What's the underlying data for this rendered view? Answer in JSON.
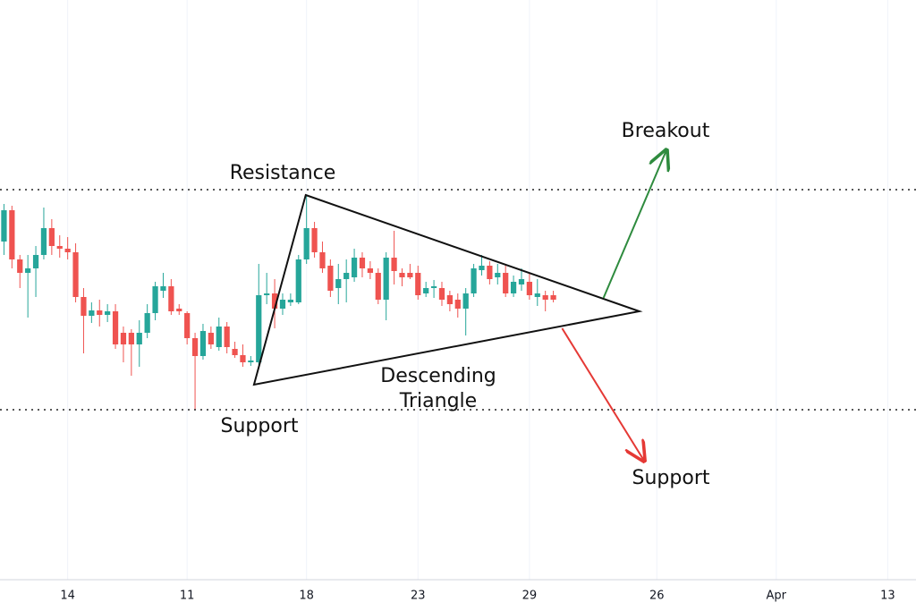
{
  "chart_data": {
    "type": "candlestick",
    "x": [
      0,
      1,
      2,
      3,
      4,
      5,
      6,
      7,
      8,
      9,
      10,
      11,
      12,
      13,
      14,
      15,
      16,
      17,
      18,
      19,
      20,
      21,
      22,
      23,
      24,
      25,
      26,
      27,
      28,
      29,
      30,
      31,
      32,
      33,
      34,
      35,
      36,
      37,
      38,
      39,
      40,
      41,
      42,
      43,
      44,
      45,
      46,
      47,
      48,
      49,
      50,
      51,
      52,
      53,
      54,
      55,
      56,
      57,
      58,
      59,
      60,
      61,
      62,
      63,
      64,
      65,
      66,
      67,
      68,
      69
    ],
    "open": [
      37.8,
      41.3,
      35.8,
      34.3,
      34.8,
      36.3,
      39.3,
      37.3,
      37.0,
      36.6,
      31.6,
      29.5,
      30.1,
      29.6,
      30.0,
      27.6,
      27.6,
      26.3,
      27.6,
      29.8,
      32.3,
      32.8,
      30.3,
      29.8,
      27.0,
      25.0,
      27.6,
      26.0,
      28.3,
      25.8,
      25.1,
      24.3,
      24.3,
      31.8,
      32.0,
      30.3,
      31.0,
      31.0,
      35.8,
      39.3,
      36.6,
      35.1,
      32.6,
      33.6,
      33.8,
      36.0,
      34.8,
      34.3,
      31.3,
      36.0,
      34.3,
      34.3,
      34.3,
      32.0,
      32.6,
      32.6,
      31.8,
      31.3,
      30.3,
      32.0,
      34.6,
      35.1,
      33.8,
      34.3,
      32.0,
      33.0,
      33.3,
      31.6,
      31.8,
      31.8
    ],
    "high": [
      42.0,
      41.8,
      36.3,
      36.3,
      37.3,
      41.6,
      40.3,
      38.5,
      38.3,
      37.6,
      32.6,
      31.0,
      31.3,
      30.8,
      30.8,
      28.3,
      28.0,
      29.0,
      30.8,
      33.3,
      34.3,
      33.6,
      30.8,
      30.0,
      27.6,
      28.6,
      28.3,
      29.3,
      28.8,
      26.6,
      26.3,
      25.0,
      35.3,
      34.3,
      33.6,
      32.0,
      32.0,
      36.3,
      43.0,
      40.0,
      37.8,
      35.8,
      35.3,
      35.8,
      37.0,
      36.6,
      35.6,
      34.8,
      36.6,
      39.0,
      34.8,
      35.3,
      35.1,
      33.3,
      33.5,
      33.3,
      32.3,
      32.0,
      32.6,
      35.3,
      36.3,
      35.6,
      35.3,
      35.3,
      34.0,
      34.8,
      34.3,
      33.6,
      32.3,
      32.3
    ],
    "low": [
      36.3,
      34.8,
      32.6,
      29.3,
      31.6,
      35.8,
      36.3,
      36.0,
      35.8,
      31.0,
      25.3,
      28.7,
      28.3,
      28.8,
      25.8,
      24.3,
      22.8,
      23.8,
      27.0,
      29.0,
      31.5,
      29.6,
      29.6,
      26.3,
      19.0,
      24.6,
      25.8,
      25.6,
      25.3,
      24.8,
      23.8,
      23.9,
      24.0,
      30.8,
      28.1,
      29.6,
      30.6,
      30.8,
      35.3,
      36.0,
      34.3,
      31.6,
      30.8,
      31.0,
      33.3,
      33.8,
      33.6,
      30.8,
      29.0,
      33.0,
      32.8,
      33.6,
      31.3,
      31.6,
      31.5,
      30.6,
      30.0,
      29.3,
      27.3,
      31.6,
      34.0,
      33.0,
      33.0,
      31.6,
      31.6,
      32.3,
      31.3,
      30.6,
      30.0,
      31.0
    ],
    "close": [
      41.3,
      35.8,
      34.3,
      34.8,
      36.3,
      39.3,
      37.3,
      37.0,
      36.6,
      31.6,
      29.5,
      30.1,
      29.6,
      30.0,
      26.3,
      26.3,
      26.3,
      27.6,
      29.8,
      32.8,
      32.8,
      30.0,
      30.0,
      27.0,
      25.0,
      27.8,
      26.3,
      28.3,
      26.0,
      25.1,
      24.3,
      24.5,
      31.8,
      32.0,
      30.3,
      31.3,
      31.3,
      35.8,
      39.3,
      36.6,
      34.8,
      32.3,
      33.6,
      34.3,
      36.0,
      34.8,
      34.3,
      31.3,
      36.0,
      34.5,
      33.8,
      33.8,
      31.8,
      32.6,
      32.8,
      31.3,
      30.8,
      30.3,
      32.0,
      34.8,
      35.1,
      33.6,
      34.3,
      32.0,
      33.3,
      33.6,
      31.8,
      32.0,
      31.3,
      31.3
    ],
    "up_color": "#26a69a",
    "down_color": "#ef5350",
    "xlim": [
      -0.5,
      114.55
    ],
    "ylim": [
      0,
      64.8
    ],
    "xticks": [
      {
        "value": 8,
        "label": "14"
      },
      {
        "value": 23,
        "label": "11"
      },
      {
        "value": 38,
        "label": "18"
      },
      {
        "value": 52,
        "label": "23"
      },
      {
        "value": 66,
        "label": "29"
      },
      {
        "value": 82,
        "label": "26"
      },
      {
        "value": 97,
        "label": "Apr"
      },
      {
        "value": 111,
        "label": "13"
      }
    ],
    "grid": true,
    "resistance": {
      "value": 43.6,
      "label": "Resistance"
    },
    "support": {
      "value": 19.0,
      "label": "Support"
    },
    "triangle": {
      "label": [
        "Descending",
        "Triangle"
      ],
      "x": [
        37.9,
        79.8,
        31.4
      ],
      "y": [
        43.0,
        30.0,
        21.8
      ]
    },
    "breakout": {
      "label": "Breakout",
      "color": "#2e8b3e",
      "x": [
        75.3,
        83.2
      ],
      "y": [
        31.5,
        48.0
      ]
    },
    "breakdown": {
      "label": "Support",
      "color": "#e53935",
      "x": [
        70.1,
        80.4
      ],
      "y": [
        28.1,
        13.3
      ]
    }
  }
}
